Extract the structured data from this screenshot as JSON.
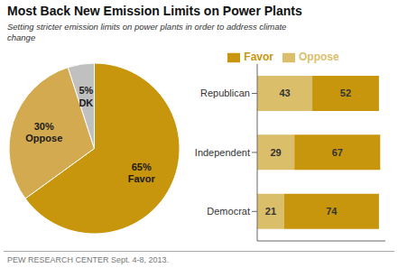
{
  "chart_data": [
    {
      "type": "pie",
      "title": "Most Back New Emission Limits on Power Plants",
      "subtitle": "Setting stricter emission limits on power plants in order to address climate\nchange",
      "annotations": [
        "PEW RESEARCH CENTER  Sept. 4-8, 2013."
      ],
      "categories": [
        "Favor",
        "Oppose",
        "DK"
      ],
      "values": [
        65,
        30,
        5
      ],
      "value_labels": [
        "65%",
        "30%",
        "5%"
      ],
      "colors": [
        "#C8960C",
        "#D4AA50",
        "#C0C0C0"
      ],
      "data_labels": true
    },
    {
      "type": "bar",
      "orientation": "horizontal",
      "stacked": true,
      "categories": [
        "Republican",
        "Independent",
        "Democrat"
      ],
      "series": [
        {
          "name": "Oppose",
          "color": "#DBBE6A",
          "values": [
            43,
            29,
            21
          ]
        },
        {
          "name": "Favor",
          "color": "#C8960C",
          "values": [
            52,
            67,
            74
          ]
        }
      ],
      "xlim": [
        0,
        100
      ],
      "data_labels": true,
      "tick_labels": "y",
      "legend": "top",
      "grid": false
    }
  ]
}
